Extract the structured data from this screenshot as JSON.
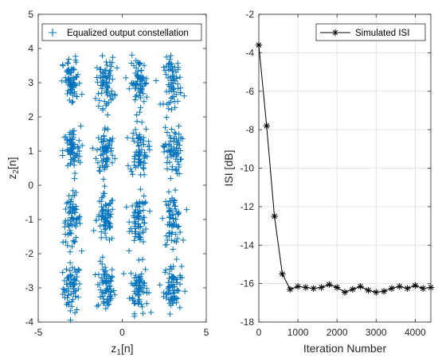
{
  "chart_data": [
    {
      "type": "scatter",
      "title": "",
      "xlabel_main": "z",
      "xlabel_sub": "1",
      "xlabel_tail": "[n]",
      "ylabel_main": "z",
      "ylabel_sub": "2",
      "ylabel_tail": "[n]",
      "xlim": [
        -5,
        5
      ],
      "ylim": [
        -4,
        5
      ],
      "xticks": [
        -5,
        0,
        5
      ],
      "yticks": [
        -4,
        -3,
        -2,
        -1,
        0,
        1,
        2,
        3,
        4,
        5
      ],
      "grid": false,
      "legend_position": "top",
      "marker": "+",
      "series": [
        {
          "name": "Equalized output constellation",
          "color": "#0072BD",
          "cluster_centers": [
            [
              -3,
              -3
            ],
            [
              -1,
              -3
            ],
            [
              1,
              -3
            ],
            [
              3,
              -3
            ],
            [
              -3,
              -1
            ],
            [
              -1,
              -1
            ],
            [
              1,
              -1
            ],
            [
              3,
              -1
            ],
            [
              -3,
              1
            ],
            [
              -1,
              1
            ],
            [
              1,
              1
            ],
            [
              3,
              1
            ],
            [
              -3,
              3
            ],
            [
              -1,
              3
            ],
            [
              1,
              3
            ],
            [
              3,
              3
            ]
          ],
          "spread": [
            0.35,
            0.45
          ]
        }
      ]
    },
    {
      "type": "line",
      "title": "",
      "xlabel": "Iteration Number",
      "ylabel": "ISI [dB]",
      "xlim": [
        0,
        4400
      ],
      "ylim": [
        -18,
        -2
      ],
      "xticks": [
        0,
        1000,
        2000,
        3000,
        4000
      ],
      "yticks": [
        -18,
        -16,
        -14,
        -12,
        -10,
        -8,
        -6,
        -4,
        -2
      ],
      "grid": true,
      "legend_position": "top-right",
      "series": [
        {
          "name": "Simulated ISI",
          "color": "#000000",
          "marker": "*",
          "x": [
            0,
            200,
            400,
            600,
            800,
            1000,
            1200,
            1400,
            1600,
            1800,
            2000,
            2200,
            2400,
            2600,
            2800,
            3000,
            3200,
            3400,
            3600,
            3800,
            4000,
            4200,
            4400
          ],
          "y": [
            -3.6,
            -7.8,
            -12.5,
            -15.5,
            -16.3,
            -16.15,
            -16.2,
            -16.25,
            -16.2,
            -16.05,
            -16.2,
            -16.45,
            -16.3,
            -16.15,
            -16.35,
            -16.45,
            -16.4,
            -16.25,
            -16.15,
            -16.25,
            -16.1,
            -16.25,
            -16.2
          ]
        }
      ]
    }
  ]
}
